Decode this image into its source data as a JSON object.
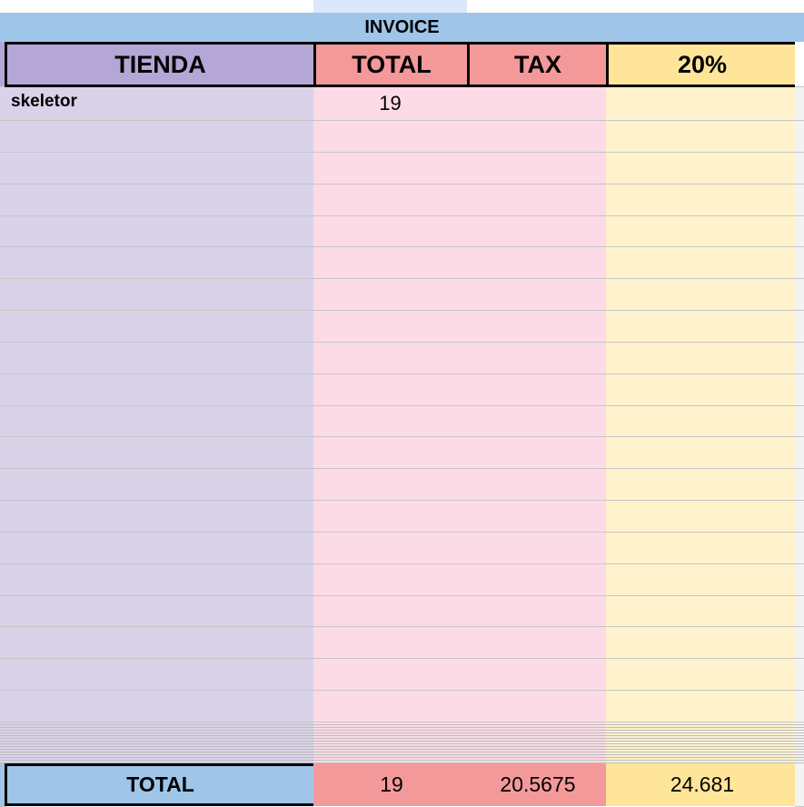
{
  "title": "INVOICE",
  "table": {
    "headers": [
      "TIENDA",
      "TOTAL",
      "TAX",
      "20%"
    ],
    "rows": [
      [
        "skeletor",
        19
      ]
    ],
    "footer": [
      "TOTAL",
      19,
      20.5675,
      24.681
    ]
  }
}
